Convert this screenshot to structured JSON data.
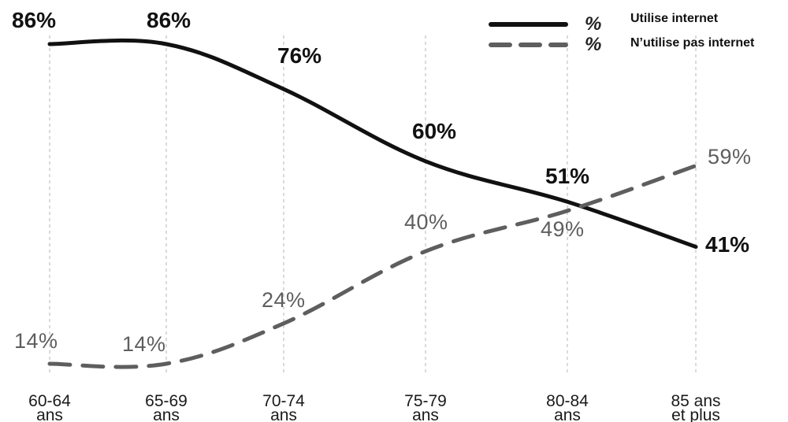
{
  "chart_data": {
    "type": "line",
    "categories": [
      [
        "60-64",
        "ans"
      ],
      [
        "65-69",
        "ans"
      ],
      [
        "70-74",
        "ans"
      ],
      [
        "75-79",
        "ans"
      ],
      [
        "80-84",
        "ans"
      ],
      [
        "85 ans",
        "et plus"
      ]
    ],
    "series": [
      {
        "name": "Utilise internet",
        "legend_symbol": "%",
        "style": "solid",
        "color": "#111111",
        "values": [
          86,
          86,
          76,
          60,
          51,
          41
        ],
        "labels": [
          "86%",
          "86%",
          "76%",
          "60%",
          "51%",
          "41%"
        ]
      },
      {
        "name": "N’utilise pas internet",
        "legend_symbol": "%",
        "style": "dashed",
        "color": "#5e5e5e",
        "values": [
          14,
          14,
          24,
          40,
          49,
          59
        ],
        "labels": [
          "14%",
          "14%",
          "24%",
          "40%",
          "49%",
          "59%"
        ]
      }
    ],
    "ylim": [
      8,
      92
    ],
    "grid": "vertical dashed at each category",
    "legend": "top-right"
  }
}
